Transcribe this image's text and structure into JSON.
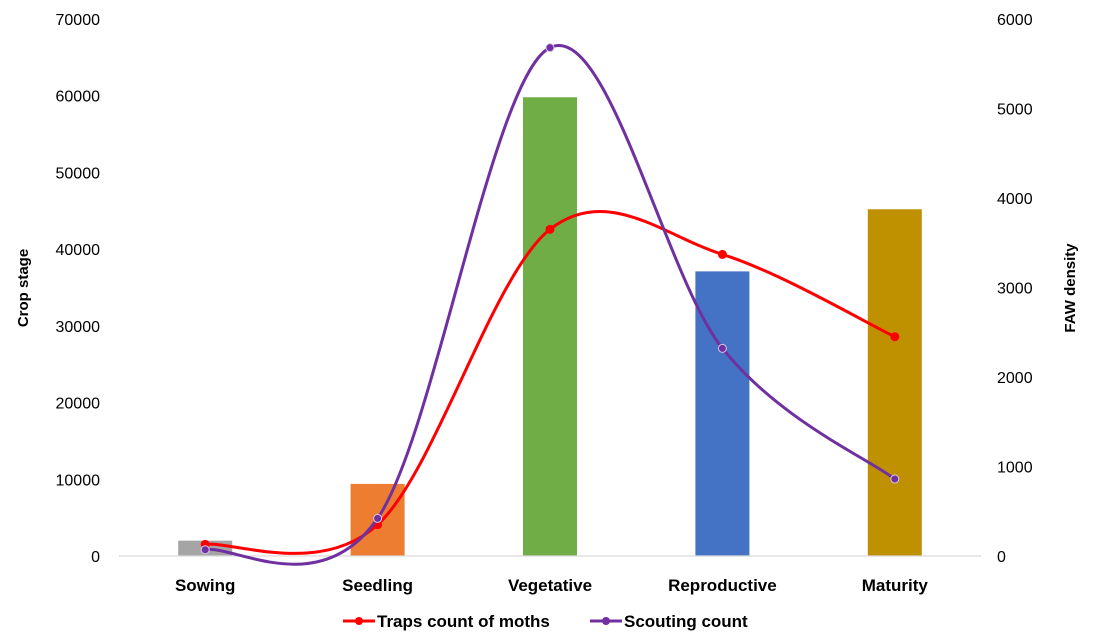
{
  "chart_data": {
    "type": "bar",
    "categories": [
      "Sowing",
      "Seedling",
      "Vegetative",
      "Reproductive",
      "Maturity"
    ],
    "bar_values": [
      2000,
      9400,
      59800,
      37100,
      45200
    ],
    "bar_colors": [
      "#a5a5a5",
      "#ed7d31",
      "#70ad47",
      "#4472c4",
      "#bf9000"
    ],
    "ylabel": "Crop stage",
    "y2label": "FAW density",
    "ylim": [
      0,
      70000
    ],
    "y2lim": [
      0,
      6000
    ],
    "yticks": [
      "0",
      "10000",
      "20000",
      "30000",
      "40000",
      "50000",
      "60000",
      "70000"
    ],
    "y2ticks": [
      "0",
      "1000",
      "2000",
      "3000",
      "4000",
      "5000",
      "6000"
    ],
    "grid": false,
    "legend_position": "bottom",
    "series": [
      {
        "name": "Traps count of moths",
        "axis": "secondary",
        "color": "#ff0000",
        "values": [
          130,
          350,
          3650,
          3370,
          2450
        ]
      },
      {
        "name": "Scouting count",
        "axis": "secondary",
        "color": "#7030a0",
        "values": [
          70,
          420,
          5680,
          2320,
          860
        ]
      }
    ]
  }
}
